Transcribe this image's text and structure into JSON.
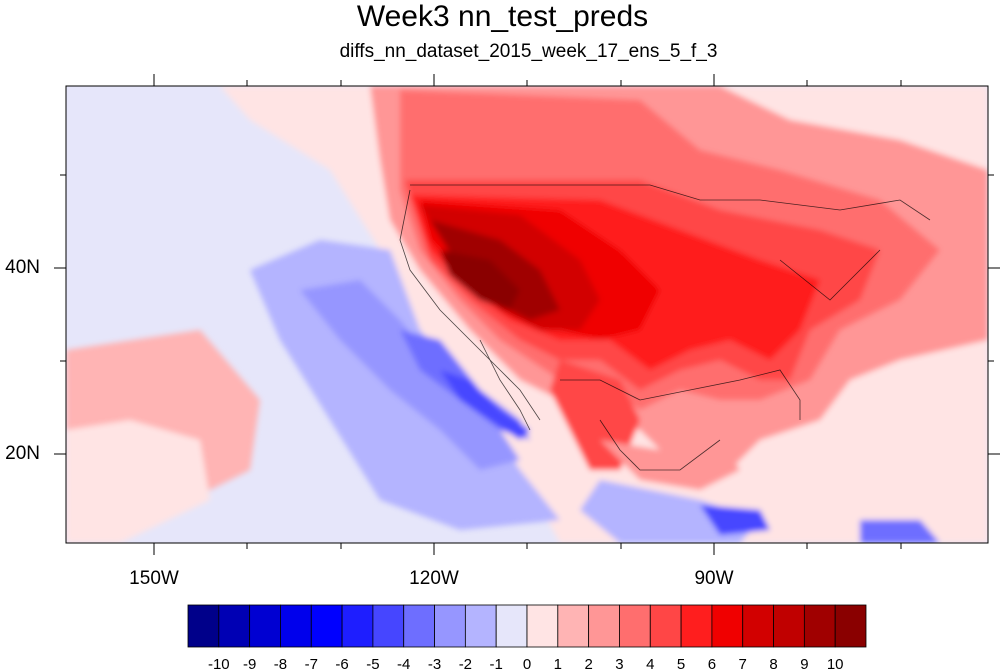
{
  "title": "Week3 nn_test_preds",
  "subtitle": "diffs_nn_dataset_2015_week_17_ens_5_f_3",
  "lon_labels": [
    "150W",
    "120W",
    "90W"
  ],
  "lat_labels": [
    "40N",
    "20N"
  ],
  "colorbar": {
    "colors": [
      "#00008a",
      "#0000b4",
      "#0000d2",
      "#0000ec",
      "#0000ff",
      "#1e1eff",
      "#4646ff",
      "#6e6eff",
      "#9696ff",
      "#b4b4ff",
      "#e6e6fa",
      "#ffe4e4",
      "#ffb4b4",
      "#ff9696",
      "#ff6e6e",
      "#ff4646",
      "#ff1e1e",
      "#f00000",
      "#d20000",
      "#c00000",
      "#a00000",
      "#8a0000"
    ],
    "labels": [
      "-10",
      "-9",
      "-8",
      "-7",
      "-6",
      "-5",
      "-4",
      "-3",
      "-2",
      "-1",
      "0",
      "1",
      "2",
      "3",
      "4",
      "5",
      "6",
      "7",
      "8",
      "9",
      "10"
    ]
  }
}
